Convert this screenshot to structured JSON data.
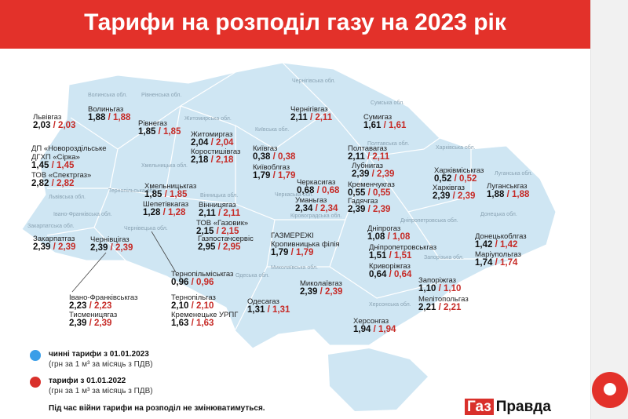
{
  "header": {
    "title": "Тарифи на розподіл газу на 2023 рік"
  },
  "regions": [
    "Волинська обл.",
    "Рівненська обл.",
    "Житомирська обл.",
    "Чернігівська обл.",
    "Сумська обл.",
    "Київська обл.",
    "Полтавська обл.",
    "Харківська обл.",
    "Луганська обл.",
    "Донецька обл.",
    "Запорізька обл.",
    "Дніпропетровська обл.",
    "Кіровоградська обл.",
    "Черкаська обл.",
    "Вінницька обл.",
    "Хмельницька обл.",
    "Тернопільська обл.",
    "Львівська обл.",
    "Івано-Франківська обл.",
    "Закарпатська обл.",
    "Чернівецька обл.",
    "Одеська обл.",
    "Миколаївська обл.",
    "Херсонська обл."
  ],
  "companies": [
    {
      "name": "Волиньгаз",
      "tariff_2023": "1,88",
      "tariff_2022": "1,88"
    },
    {
      "name": "Рівнегаз",
      "tariff_2023": "1,85",
      "tariff_2022": "1,85"
    },
    {
      "name": "Житомиргаз",
      "tariff_2023": "2,04",
      "tariff_2022": "2,04"
    },
    {
      "name": "Коростишівгаз",
      "tariff_2023": "2,18",
      "tariff_2022": "2,18"
    },
    {
      "name": "Чернігівгаз",
      "tariff_2023": "2,11",
      "tariff_2022": "2,11"
    },
    {
      "name": "Сумигаз",
      "tariff_2023": "1,61",
      "tariff_2022": "1,61"
    },
    {
      "name": "Львівгаз",
      "tariff_2023": "2,03",
      "tariff_2022": "2,03"
    },
    {
      "name": "ДП «Новороздільське ДГХП «Сірка»",
      "tariff_2023": "1,45",
      "tariff_2022": "1,45"
    },
    {
      "name": "ТОВ «Спектргаз»",
      "tariff_2023": "2,82",
      "tariff_2022": "2,82"
    },
    {
      "name": "Київгаз",
      "tariff_2023": "0,38",
      "tariff_2022": "0,38"
    },
    {
      "name": "Київоблгаз",
      "tariff_2023": "1,79",
      "tariff_2022": "1,79"
    },
    {
      "name": "Полтавагаз",
      "tariff_2023": "2,11",
      "tariff_2022": "2,11"
    },
    {
      "name": "Лубнигаз",
      "tariff_2023": "2,39",
      "tariff_2022": "2,39"
    },
    {
      "name": "Кременчукгаз",
      "tariff_2023": "0,55",
      "tariff_2022": "0,55"
    },
    {
      "name": "Гадячгаз",
      "tariff_2023": "2,39",
      "tariff_2022": "2,39"
    },
    {
      "name": "Черкасигаз",
      "tariff_2023": "0,68",
      "tariff_2022": "0,68"
    },
    {
      "name": "Уманьгаз",
      "tariff_2023": "2,34",
      "tariff_2022": "2,34"
    },
    {
      "name": "Хмельницькгаз",
      "tariff_2023": "1,85",
      "tariff_2022": "1,85"
    },
    {
      "name": "Шепетівкагаз",
      "tariff_2023": "1,28",
      "tariff_2022": "1,28"
    },
    {
      "name": "Вінницягаз",
      "tariff_2023": "2,11",
      "tariff_2022": "2,11"
    },
    {
      "name": "ТОВ «Газовик»",
      "tariff_2023": "2,15",
      "tariff_2022": "2,15"
    },
    {
      "name": "Газпостачсервіс",
      "tariff_2023": "2,95",
      "tariff_2022": "2,95"
    },
    {
      "name": "Харківміськгаз",
      "tariff_2023": "0,52",
      "tariff_2022": "0,52"
    },
    {
      "name": "Харківгаз",
      "tariff_2023": "2,39",
      "tariff_2022": "2,39"
    },
    {
      "name": "Луганськгаз",
      "tariff_2023": "1,88",
      "tariff_2022": "1,88"
    },
    {
      "name": "Закарпатгаз",
      "tariff_2023": "2,39",
      "tariff_2022": "2,39"
    },
    {
      "name": "ГАЗМЕРЕЖІ Кропивницька філія",
      "tariff_2023": "1,79",
      "tariff_2022": "1,79"
    },
    {
      "name": "Дніпрогаз",
      "tariff_2023": "1,08",
      "tariff_2022": "1,08"
    },
    {
      "name": "Дніпропетровськгаз",
      "tariff_2023": "1,51",
      "tariff_2022": "1,51"
    },
    {
      "name": "Криворіжгаз",
      "tariff_2023": "0,64",
      "tariff_2022": "0,64"
    },
    {
      "name": "Донецькоблгаз",
      "tariff_2023": "1,42",
      "tariff_2022": "1,42"
    },
    {
      "name": "Маріупольгаз",
      "tariff_2023": "1,74",
      "tariff_2022": "1,74"
    },
    {
      "name": "Чернівцігаз",
      "tariff_2023": "2,39",
      "tariff_2022": "2,39"
    },
    {
      "name": "Тернопільміськгаз",
      "tariff_2023": "0,96",
      "tariff_2022": "0,96"
    },
    {
      "name": "Тернопільгаз",
      "tariff_2023": "2,10",
      "tariff_2022": "2,10"
    },
    {
      "name": "Кременецьке УРПГ",
      "tariff_2023": "1,63",
      "tariff_2022": "1,63"
    },
    {
      "name": "Миколаївгаз",
      "tariff_2023": "2,39",
      "tariff_2022": "2,39"
    },
    {
      "name": "Одесагаз",
      "tariff_2023": "1,31",
      "tariff_2022": "1,31"
    },
    {
      "name": "Запоріжгаз",
      "tariff_2023": "1,10",
      "tariff_2022": "1,10"
    },
    {
      "name": "Мелітопольгаз",
      "tariff_2023": "2,21",
      "tariff_2022": "2,21"
    },
    {
      "name": "Івано-Франківськгаз",
      "tariff_2023": "2,23",
      "tariff_2022": "2,23"
    },
    {
      "name": "Тисменицягаз",
      "tariff_2023": "2,39",
      "tariff_2022": "2,39"
    },
    {
      "name": "Херсонгаз",
      "tariff_2023": "1,94",
      "tariff_2022": "1,94"
    }
  ],
  "legend": [
    {
      "label": "чинні тарифи з  01.01.2023",
      "note": "(грн за 1 м³ за місяць з ПДВ)",
      "color": "#3a9ee8"
    },
    {
      "label": "тарифи з 01.01.2022",
      "note": "(грн за 1 м³ за місяць з ПДВ)",
      "color": "#d9302b"
    }
  ],
  "note": "Під час війни тарифи на розподіл не змінюватимуться.",
  "logo": {
    "part1": "Газ",
    "part2": "Правда"
  }
}
